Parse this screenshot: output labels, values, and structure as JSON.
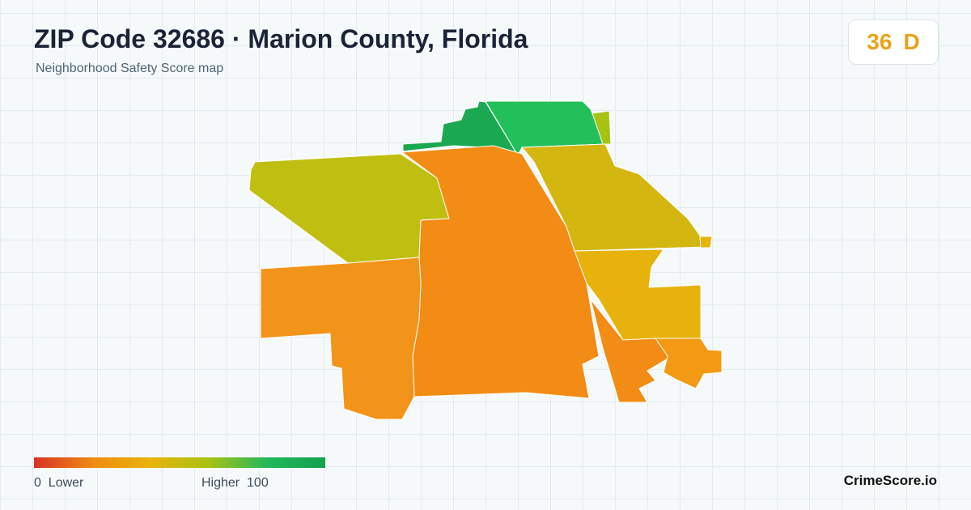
{
  "header": {
    "title": "ZIP Code 32686 · Marion County, Florida",
    "subtitle": "Neighborhood Safety Score map"
  },
  "score": {
    "value": 36,
    "grade": "D"
  },
  "legend": {
    "min": 0,
    "min_label": "Lower",
    "max_label": "Higher",
    "max": 100
  },
  "brand": "CrimeScore.io"
}
